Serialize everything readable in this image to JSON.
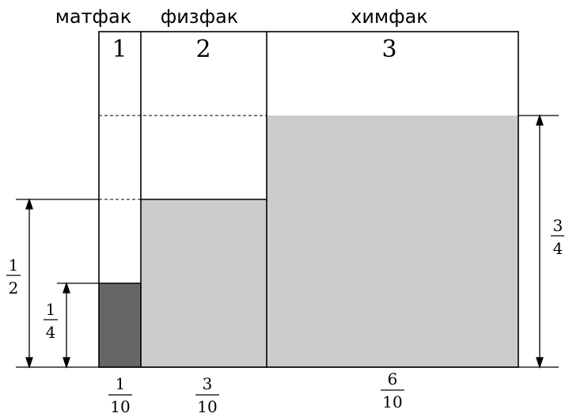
{
  "faculties": [
    {
      "name": "матфак",
      "number": "1",
      "width_fraction": {
        "num": "1",
        "den": "10"
      },
      "shaded_height_fraction": {
        "num": "1",
        "den": "4"
      }
    },
    {
      "name": "физфак",
      "number": "2",
      "width_fraction": {
        "num": "3",
        "den": "10"
      },
      "shaded_height_fraction": {
        "num": "1",
        "den": "2"
      }
    },
    {
      "name": "химфак",
      "number": "3",
      "width_fraction": {
        "num": "6",
        "den": "10"
      },
      "shaded_height_fraction": {
        "num": "3",
        "den": "4"
      }
    }
  ],
  "colors": {
    "dark_fill": "#666666",
    "light_fill": "#cccccc",
    "stroke": "#000000"
  }
}
